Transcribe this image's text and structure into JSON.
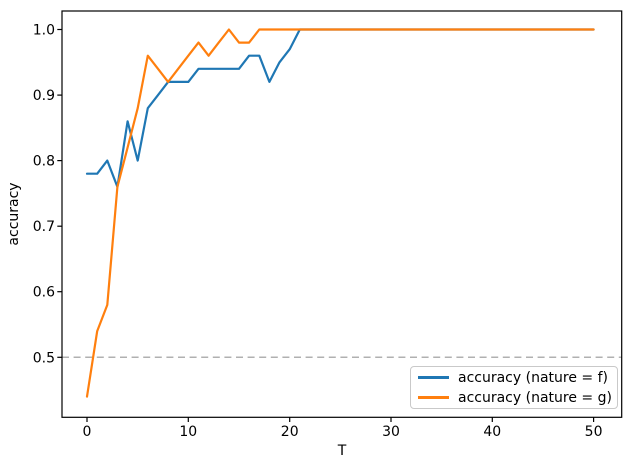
{
  "figure": {
    "background": "#ffffff",
    "text_color": "#000000",
    "spine_color": "#000000"
  },
  "chart_data": {
    "type": "line",
    "title": "",
    "xlabel": "T",
    "ylabel": "accuracy",
    "xlim": [
      -2.47,
      52.77
    ],
    "ylim": [
      0.4085,
      1.0282
    ],
    "xticks": [
      0,
      10,
      20,
      30,
      40,
      50
    ],
    "yticks": [
      0.5,
      0.6,
      0.7,
      0.8,
      0.9,
      1.0
    ],
    "grid": false,
    "legend_position": "lower right",
    "reference_line": {
      "y": 0.5,
      "style": "dashed",
      "color": "#b0b0b0"
    },
    "series": [
      {
        "name": "accuracy (nature = f)",
        "color": "#1f77b4",
        "x": [
          0,
          1,
          2,
          3,
          4,
          5,
          6,
          7,
          8,
          9,
          10,
          11,
          12,
          13,
          14,
          15,
          16,
          17,
          18,
          19,
          20,
          21,
          50
        ],
        "y": [
          0.78,
          0.78,
          0.8,
          0.76,
          0.86,
          0.8,
          0.88,
          0.9,
          0.92,
          0.92,
          0.92,
          0.94,
          0.94,
          0.94,
          0.94,
          0.94,
          0.96,
          0.96,
          0.92,
          0.95,
          0.97,
          1.0,
          1.0
        ]
      },
      {
        "name": "accuracy (nature = g)",
        "color": "#ff7f0e",
        "x": [
          0,
          1,
          2,
          3,
          4,
          5,
          6,
          7,
          8,
          9,
          10,
          11,
          12,
          13,
          14,
          15,
          16,
          17,
          50
        ],
        "y": [
          0.44,
          0.54,
          0.58,
          0.76,
          0.82,
          0.88,
          0.96,
          0.94,
          0.92,
          0.94,
          0.96,
          0.98,
          0.96,
          0.98,
          1.0,
          0.98,
          0.98,
          1.0,
          1.0
        ]
      }
    ]
  }
}
